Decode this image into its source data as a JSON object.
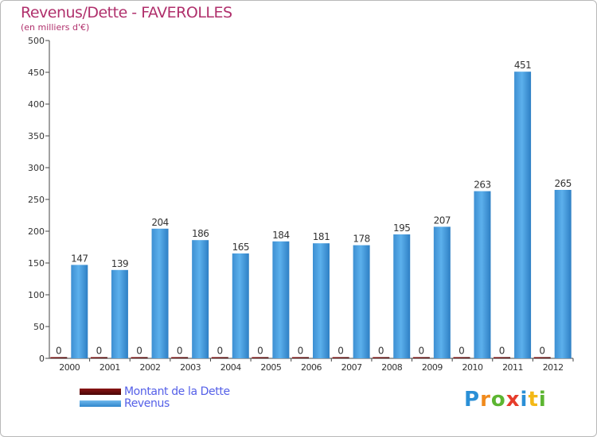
{
  "header": {
    "title": "Revenus/Dette - FAVEROLLES",
    "subtitle": "(en milliers d'€)"
  },
  "chart_data": {
    "type": "bar",
    "title": "Revenus/Dette - FAVEROLLES",
    "subtitle": "(en milliers d'€)",
    "xlabel": "",
    "ylabel": "",
    "ylim": [
      0,
      500
    ],
    "yticks": [
      0,
      50,
      100,
      150,
      200,
      250,
      300,
      350,
      400,
      450,
      500
    ],
    "grid": false,
    "categories": [
      "2000",
      "2001",
      "2002",
      "2003",
      "2004",
      "2005",
      "2006",
      "2007",
      "2008",
      "2009",
      "2010",
      "2011",
      "2012"
    ],
    "series": [
      {
        "name": "Montant de la Dette",
        "color": "#6b0a0a",
        "values": [
          0,
          0,
          0,
          0,
          0,
          0,
          0,
          0,
          0,
          0,
          0,
          0,
          0
        ]
      },
      {
        "name": "Revenus",
        "color": "#4aa3e4",
        "values": [
          147,
          139,
          204,
          186,
          165,
          184,
          181,
          178,
          195,
          207,
          263,
          451,
          265
        ]
      }
    ],
    "legend_position": "bottom-left"
  },
  "legend": {
    "items": [
      {
        "label": "Montant de la Dette",
        "color": "#6b0a0a"
      },
      {
        "label": "Revenus",
        "color": "#4aa3e4"
      }
    ]
  },
  "logo": {
    "letters": [
      {
        "ch": "P",
        "color": "#2a8fd6"
      },
      {
        "ch": "r",
        "color": "#f08a1c"
      },
      {
        "ch": "o",
        "color": "#5cb531"
      },
      {
        "ch": "x",
        "color": "#e63c2b"
      },
      {
        "ch": "i",
        "color": "#2a8fd6"
      },
      {
        "ch": "t",
        "color": "#f3b817"
      },
      {
        "ch": "i",
        "color": "#5cb531"
      }
    ]
  }
}
